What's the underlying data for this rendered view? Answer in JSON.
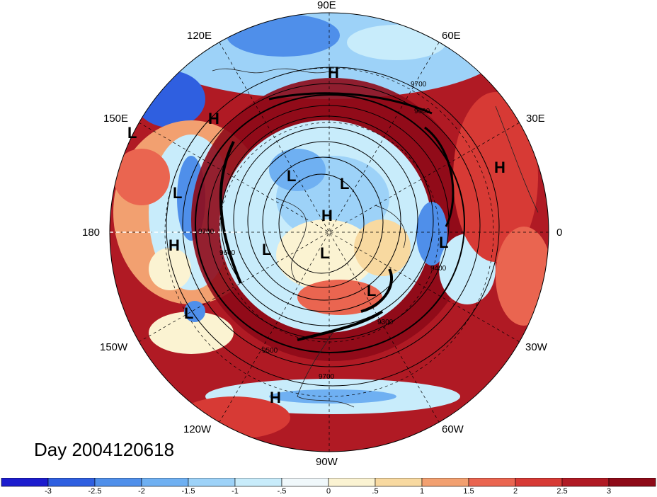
{
  "title": "Day 2004120618",
  "longitude_labels": {
    "lon_90e": "90E",
    "lon_120e": "120E",
    "lon_60e": "60E",
    "lon_150e": "150E",
    "lon_30e": "30E",
    "lon_180": "180",
    "lon_0": "0",
    "lon_150w": "150W",
    "lon_30w": "30W",
    "lon_120w": "120W",
    "lon_60w": "60W",
    "lon_90w": "90W"
  },
  "pressure_systems": [
    {
      "label": "H",
      "region": "north central Eurasia"
    },
    {
      "label": "H",
      "region": "northeast Asia"
    },
    {
      "label": "L",
      "region": "north Pacific west"
    },
    {
      "label": "H",
      "region": "Europe"
    },
    {
      "label": "L",
      "region": "Arctic"
    },
    {
      "label": "L",
      "region": "Arctic"
    },
    {
      "label": "H",
      "region": "Pole"
    },
    {
      "label": "L",
      "region": "Pacific"
    },
    {
      "label": "L",
      "region": "North Atlantic"
    },
    {
      "label": "H",
      "region": "Pacific"
    },
    {
      "label": "L",
      "region": "Canada"
    },
    {
      "label": "L",
      "region": "Arctic"
    },
    {
      "label": "L",
      "region": "Hudson Bay"
    },
    {
      "label": "L",
      "region": "Gulf of Alaska"
    },
    {
      "label": "H",
      "region": "Caribbean"
    }
  ],
  "contour_labels": [
    "9700",
    "9600",
    "9400",
    "9300",
    "9500"
  ],
  "colorbar": {
    "ticks": [
      "-3",
      "-2.5",
      "-2",
      "-1.5",
      "-1",
      "-.5",
      "0",
      ".5",
      "1",
      "1.5",
      "2",
      "2.5",
      "3"
    ],
    "colors": [
      "#1c1cce",
      "#2f5fe0",
      "#4f8fea",
      "#6fb0f2",
      "#9dd2f8",
      "#c8ecfb",
      "#f0f8fb",
      "#fbf3d2",
      "#f8d9a0",
      "#f2a070",
      "#ea6550",
      "#d73a35",
      "#b01a24",
      "#8e0a18"
    ]
  }
}
